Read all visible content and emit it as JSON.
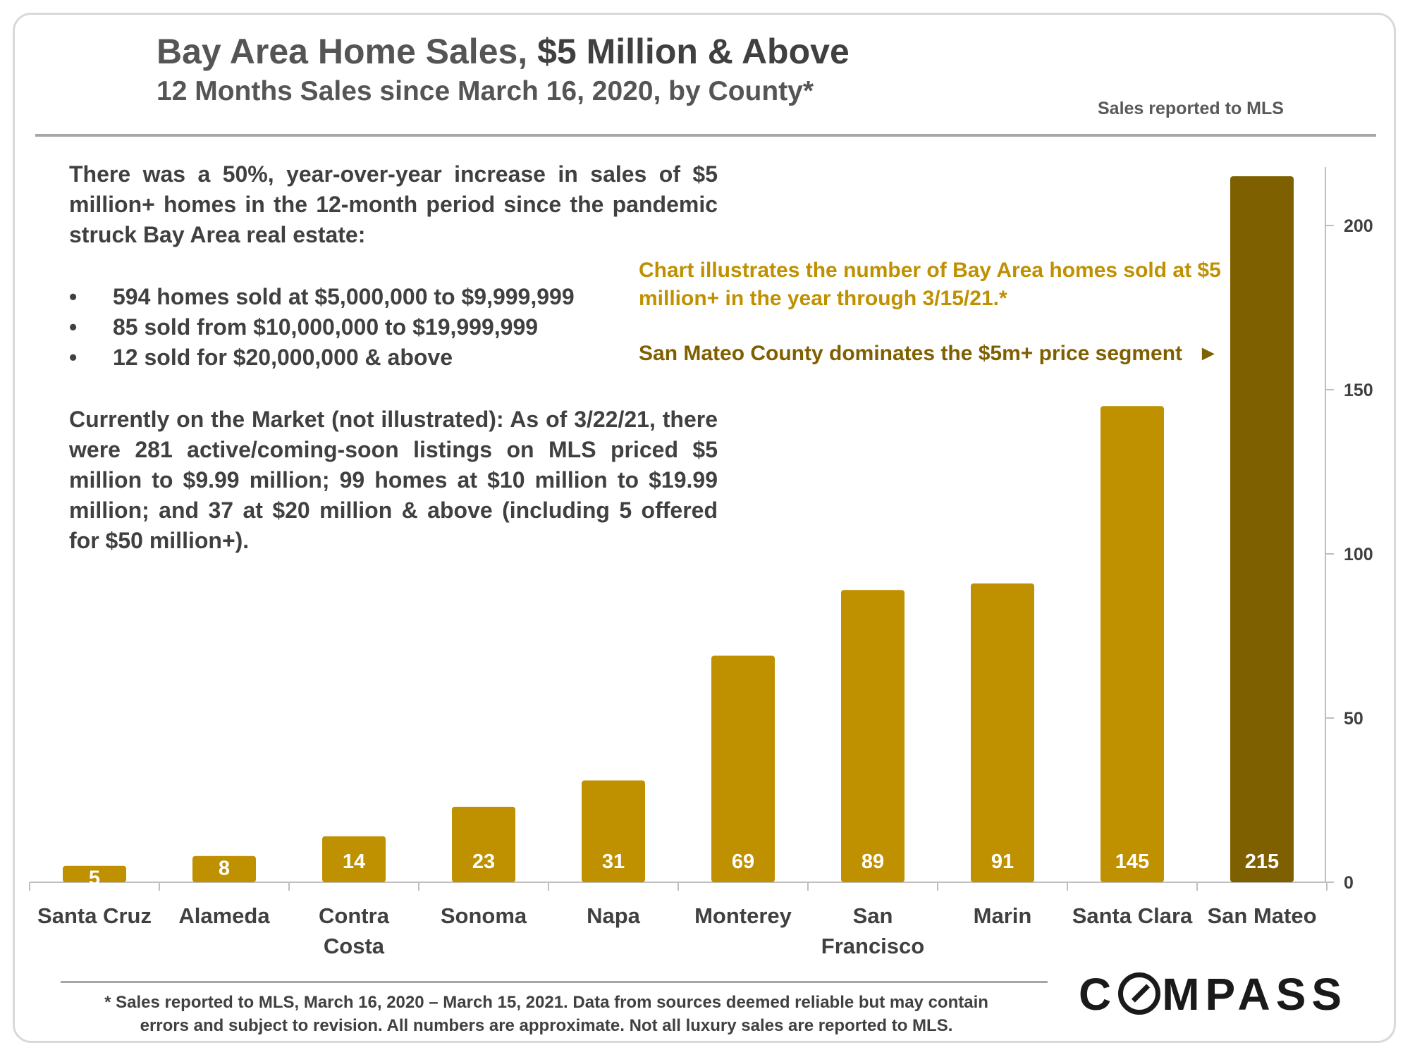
{
  "header": {
    "title_main": "Bay Area Home Sales, ",
    "title_em": "$5 Million & Above",
    "subtitle": "12 Months Sales since March 16, 2020, by County*",
    "source_note": "Sales reported to MLS"
  },
  "commentary": {
    "intro": "There was a 50%, year-over-year increase in sales of $5 million+ homes in the 12-month period since the pandemic struck Bay Area real estate:",
    "bullets": [
      "594 homes sold at $5,000,000 to $9,999,999",
      "85 sold from $10,000,000 to $19,999,999",
      "12 sold for $20,000,000 & above"
    ],
    "market": "Currently on the Market (not illustrated): As of 3/22/21, there were 281 active/coming-soon listings on MLS priced $5 million to $9.99 million; 99 homes at $10 million to $19.99 million; and 37 at $20 million & above (including 5 offered for $50 million+)."
  },
  "callouts": {
    "illustrates": "Chart illustrates the number of Bay Area homes sold at $5 million+ in the year through 3/15/21.*",
    "dominates": "San Mateo County dominates the $5m+ price segment",
    "arrow": "►"
  },
  "footer": {
    "footnote_line1": "* Sales reported to MLS, March 16, 2020 – March 15, 2021. Data from sources deemed reliable but may contain",
    "footnote_line2": "errors and subject to revision.  All numbers are approximate. Not all luxury sales are reported to MLS.",
    "logo_pre": "C",
    "logo_post": "MPASS"
  },
  "colors": {
    "bar": "#bf9000",
    "highlight_bar": "#7f6000",
    "callout_text": "#bf9000",
    "callout_emphasis": "#7f6000"
  },
  "chart_data": {
    "type": "bar",
    "categories": [
      [
        "Santa Cruz"
      ],
      [
        "Alameda"
      ],
      [
        "Contra",
        "Costa"
      ],
      [
        "Sonoma"
      ],
      [
        "Napa"
      ],
      [
        "Monterey"
      ],
      [
        "San",
        "Francisco"
      ],
      [
        "Marin"
      ],
      [
        "Santa Clara"
      ],
      [
        "San Mateo"
      ]
    ],
    "values": [
      5,
      8,
      14,
      23,
      31,
      69,
      89,
      91,
      145,
      215
    ],
    "highlight_index": 9,
    "y_axis_side": "right",
    "ylim": [
      0,
      220
    ],
    "yticks": [
      0,
      50,
      100,
      150,
      200
    ],
    "grid": false,
    "data_labels": true
  }
}
